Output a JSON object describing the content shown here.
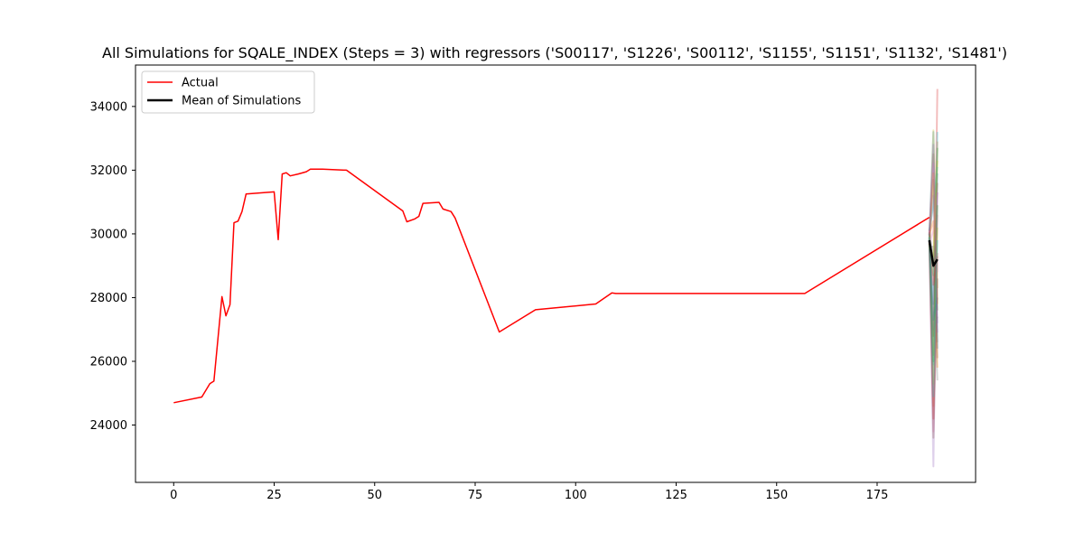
{
  "chart_data": {
    "type": "line",
    "title": "All Simulations for SQALE_INDEX (Steps = 3) with regressors ('S00117', 'S1226', 'S00112', 'S1155', 'S1151', 'S1132', 'S1481')",
    "xlabel": "",
    "ylabel": "",
    "xlim": [
      -9.5,
      199.5
    ],
    "ylim": [
      22200,
      35300
    ],
    "x_ticks": [
      0,
      25,
      50,
      75,
      100,
      125,
      150,
      175
    ],
    "y_ticks": [
      24000,
      26000,
      28000,
      30000,
      32000,
      34000
    ],
    "grid": false,
    "legend": {
      "position": "top-left",
      "entries": [
        "Actual",
        "Mean of Simulations"
      ]
    },
    "series": [
      {
        "name": "Actual",
        "color": "#ff0000",
        "points": [
          [
            0,
            24700
          ],
          [
            7,
            24880
          ],
          [
            9,
            25300
          ],
          [
            10,
            25380
          ],
          [
            12,
            28030
          ],
          [
            13,
            27430
          ],
          [
            14,
            27780
          ],
          [
            15,
            30350
          ],
          [
            16,
            30400
          ],
          [
            17,
            30700
          ],
          [
            18,
            31250
          ],
          [
            25,
            31320
          ],
          [
            26,
            29820
          ],
          [
            27,
            31880
          ],
          [
            28,
            31920
          ],
          [
            29,
            31820
          ],
          [
            31,
            31880
          ],
          [
            33,
            31950
          ],
          [
            34,
            32030
          ],
          [
            37,
            32030
          ],
          [
            43,
            32000
          ],
          [
            57,
            30720
          ],
          [
            58,
            30380
          ],
          [
            60,
            30470
          ],
          [
            61,
            30550
          ],
          [
            62,
            30960
          ],
          [
            66,
            30990
          ],
          [
            67,
            30780
          ],
          [
            69,
            30700
          ],
          [
            70,
            30500
          ],
          [
            81,
            26920
          ],
          [
            90,
            27620
          ],
          [
            105,
            27800
          ],
          [
            109,
            28150
          ],
          [
            110,
            28130
          ],
          [
            157,
            28130
          ],
          [
            188,
            30520
          ]
        ]
      },
      {
        "name": "Mean of Simulations",
        "color": "#000000",
        "points": [
          [
            188,
            29800
          ],
          [
            189,
            29000
          ],
          [
            190,
            29200
          ]
        ]
      }
    ],
    "simulations": {
      "x": [
        188,
        189,
        190
      ],
      "colors": [
        "#1f77b4",
        "#ff7f0e",
        "#2ca02c",
        "#d62728",
        "#9467bd",
        "#8c564b",
        "#e377c2",
        "#7f7f7f",
        "#bcbd22",
        "#17becf"
      ],
      "paths": [
        [
          29950,
          33200,
          26400
        ],
        [
          29700,
          24600,
          32900
        ],
        [
          30100,
          31700,
          27600
        ],
        [
          29600,
          26200,
          34550
        ],
        [
          30050,
          22700,
          31300
        ],
        [
          29800,
          32500,
          26100
        ],
        [
          29500,
          23800,
          30600
        ],
        [
          30200,
          29000,
          25400
        ],
        [
          29650,
          33250,
          28300
        ],
        [
          29900,
          25900,
          33200
        ],
        [
          29750,
          27800,
          31900
        ],
        [
          30000,
          30400,
          25800
        ],
        [
          29550,
          28700,
          32700
        ],
        [
          30150,
          24200,
          29400
        ],
        [
          29850,
          31200,
          27200
        ],
        [
          29700,
          26800,
          31600
        ],
        [
          30050,
          32200,
          28800
        ],
        [
          29600,
          29600,
          26600
        ],
        [
          29900,
          25300,
          30200
        ],
        [
          30100,
          30900,
          32100
        ],
        [
          29800,
          27300,
          28000
        ],
        [
          29650,
          31900,
          27800
        ],
        [
          30000,
          26000,
          30900
        ],
        [
          29750,
          28400,
          29300
        ],
        [
          29950,
          32800,
          26900
        ],
        [
          29850,
          23600,
          28600
        ],
        [
          29700,
          30100,
          31300
        ],
        [
          30050,
          27000,
          27400
        ],
        [
          29600,
          29300,
          32300
        ],
        [
          29900,
          24900,
          29800
        ]
      ]
    }
  }
}
